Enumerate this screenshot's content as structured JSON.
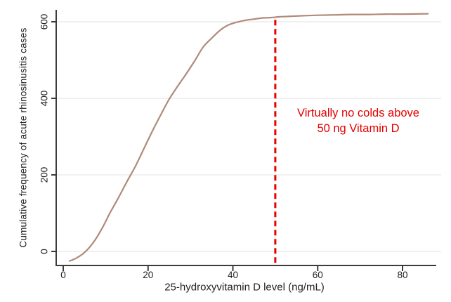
{
  "figure": {
    "background": "#ffffff",
    "text_color": "#222222",
    "axis_color": "#3b3b3b",
    "gridline_color": "#ebebeb"
  },
  "chart_data": {
    "type": "line",
    "title": "",
    "xlabel": "25-hydroxyvitamin D level (ng/mL)",
    "ylabel": "Cumulative frequency of acute rhinosinusitis cases",
    "x_ticks": [
      0,
      20,
      40,
      60,
      80
    ],
    "x_tick_labels": [
      "0",
      "20",
      "40",
      "60",
      "80"
    ],
    "y_ticks": [
      0,
      200,
      400,
      600
    ],
    "y_tick_labels": [
      "0",
      "200",
      "400",
      "600"
    ],
    "xlim": [
      -1.7,
      88
    ],
    "ylim": [
      -37,
      632
    ],
    "grid": "horizontal",
    "legend": "none",
    "series": [
      {
        "name": "cumulative-frequency-of-cases",
        "color": "#b08a7a",
        "points": [
          [
            1.5,
            -25
          ],
          [
            3,
            -18
          ],
          [
            5,
            -3
          ],
          [
            7,
            22
          ],
          [
            9,
            57
          ],
          [
            11,
            100
          ],
          [
            13,
            140
          ],
          [
            15,
            182
          ],
          [
            17,
            222
          ],
          [
            19,
            268
          ],
          [
            21,
            314
          ],
          [
            23,
            357
          ],
          [
            25,
            398
          ],
          [
            27,
            432
          ],
          [
            29,
            464
          ],
          [
            31,
            498
          ],
          [
            33,
            534
          ],
          [
            35,
            557
          ],
          [
            37,
            578
          ],
          [
            39,
            592
          ],
          [
            41,
            599
          ],
          [
            43,
            604
          ],
          [
            45,
            607
          ],
          [
            47,
            610
          ],
          [
            49,
            611
          ],
          [
            51,
            613
          ],
          [
            53,
            614
          ],
          [
            55,
            615
          ],
          [
            57,
            616
          ],
          [
            60,
            617
          ],
          [
            64,
            618
          ],
          [
            68,
            619
          ],
          [
            72,
            619
          ],
          [
            76,
            620
          ],
          [
            80,
            620
          ],
          [
            86,
            621
          ]
        ]
      }
    ],
    "reference_line": {
      "x": 50,
      "color": "#e80000",
      "style": "dashed",
      "y_top": 605,
      "y_bottom": -36
    },
    "annotation": {
      "lines": [
        "Virtually no colds above",
        "50 ng Vitamin D"
      ],
      "color": "#e40000"
    }
  }
}
